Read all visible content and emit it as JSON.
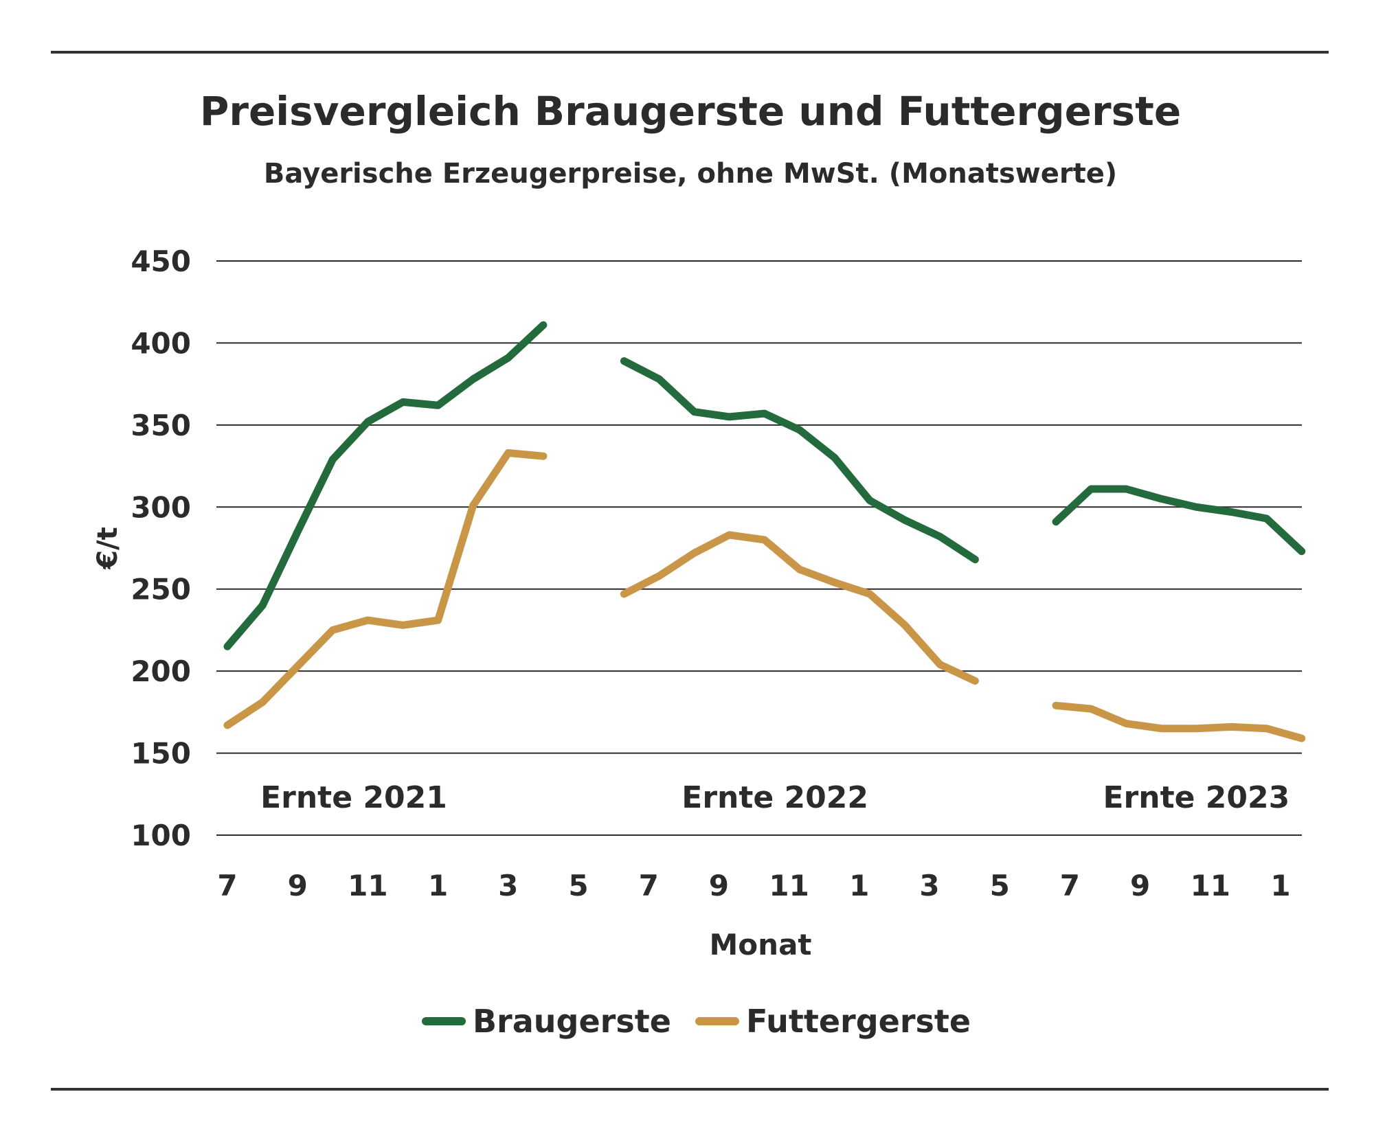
{
  "chart_data": {
    "type": "line",
    "title": "Preisvergleich Braugerste und Futtergerste",
    "subtitle": "Bayerische Erzeugerpreise, ohne MwSt. (Monatswerte)",
    "xlabel": "Monat",
    "ylabel": "€/t",
    "ylim": [
      100,
      450
    ],
    "yticks": [
      "100",
      "150",
      "200",
      "250",
      "300",
      "350",
      "400",
      "450"
    ],
    "xlim": [
      0,
      30.3
    ],
    "xticks": [
      {
        "x": 0,
        "label": "7"
      },
      {
        "x": 2,
        "label": "9"
      },
      {
        "x": 4,
        "label": "11"
      },
      {
        "x": 6,
        "label": "1"
      },
      {
        "x": 8,
        "label": "3"
      },
      {
        "x": 10,
        "label": "5"
      },
      {
        "x": 12,
        "label": "7"
      },
      {
        "x": 14,
        "label": "9"
      },
      {
        "x": 16,
        "label": "11"
      },
      {
        "x": 18,
        "label": "1"
      },
      {
        "x": 20,
        "label": "3"
      },
      {
        "x": 22,
        "label": "5"
      },
      {
        "x": 24,
        "label": "7"
      },
      {
        "x": 26,
        "label": "9"
      },
      {
        "x": 28,
        "label": "11"
      },
      {
        "x": 30,
        "label": "1"
      }
    ],
    "grid": true,
    "legend_position": "bottom",
    "annotations": [
      {
        "text": "Ernte 2021",
        "x": 3.6,
        "y": 123
      },
      {
        "text": "Ernte 2022",
        "x": 15.6,
        "y": 123
      },
      {
        "text": "Ernte 2023",
        "x": 27.6,
        "y": 123
      }
    ],
    "series": [
      {
        "name": "Braugerste",
        "color": "#236a3c",
        "segments": [
          {
            "x": [
              0,
              1,
              2,
              3,
              4,
              5,
              6,
              7,
              8,
              9
            ],
            "y": [
              215,
              240,
              285,
              329,
              352,
              364,
              362,
              378,
              391,
              411
            ]
          },
          {
            "x": [
              11.3,
              12.3,
              13.3,
              14.3,
              15.3,
              16.3,
              17.3,
              18.3,
              19.3,
              20.3,
              21.3
            ],
            "y": [
              389,
              378,
              358,
              355,
              357,
              347,
              330,
              304,
              292,
              282,
              268
            ]
          },
          {
            "x": [
              23.6,
              24.6,
              25.6,
              26.6,
              27.6,
              28.6,
              29.6,
              30.6
            ],
            "y": [
              291,
              311,
              311,
              305,
              300,
              297,
              293,
              273
            ]
          }
        ]
      },
      {
        "name": "Futtergerste",
        "color": "#c99647",
        "segments": [
          {
            "x": [
              0,
              1,
              2,
              3,
              4,
              5,
              6,
              7,
              8,
              9
            ],
            "y": [
              167,
              181,
              203,
              225,
              231,
              228,
              231,
              301,
              333,
              331
            ]
          },
          {
            "x": [
              11.3,
              12.3,
              13.3,
              14.3,
              15.3,
              16.3,
              17.3,
              18.3,
              19.3,
              20.3,
              21.3
            ],
            "y": [
              247,
              258,
              272,
              283,
              280,
              262,
              254,
              247,
              228,
              204,
              194
            ]
          },
          {
            "x": [
              23.6,
              24.6,
              25.6,
              26.6,
              27.6,
              28.6,
              29.6,
              30.6
            ],
            "y": [
              179,
              177,
              168,
              165,
              165,
              166,
              165,
              159
            ]
          }
        ]
      }
    ]
  }
}
